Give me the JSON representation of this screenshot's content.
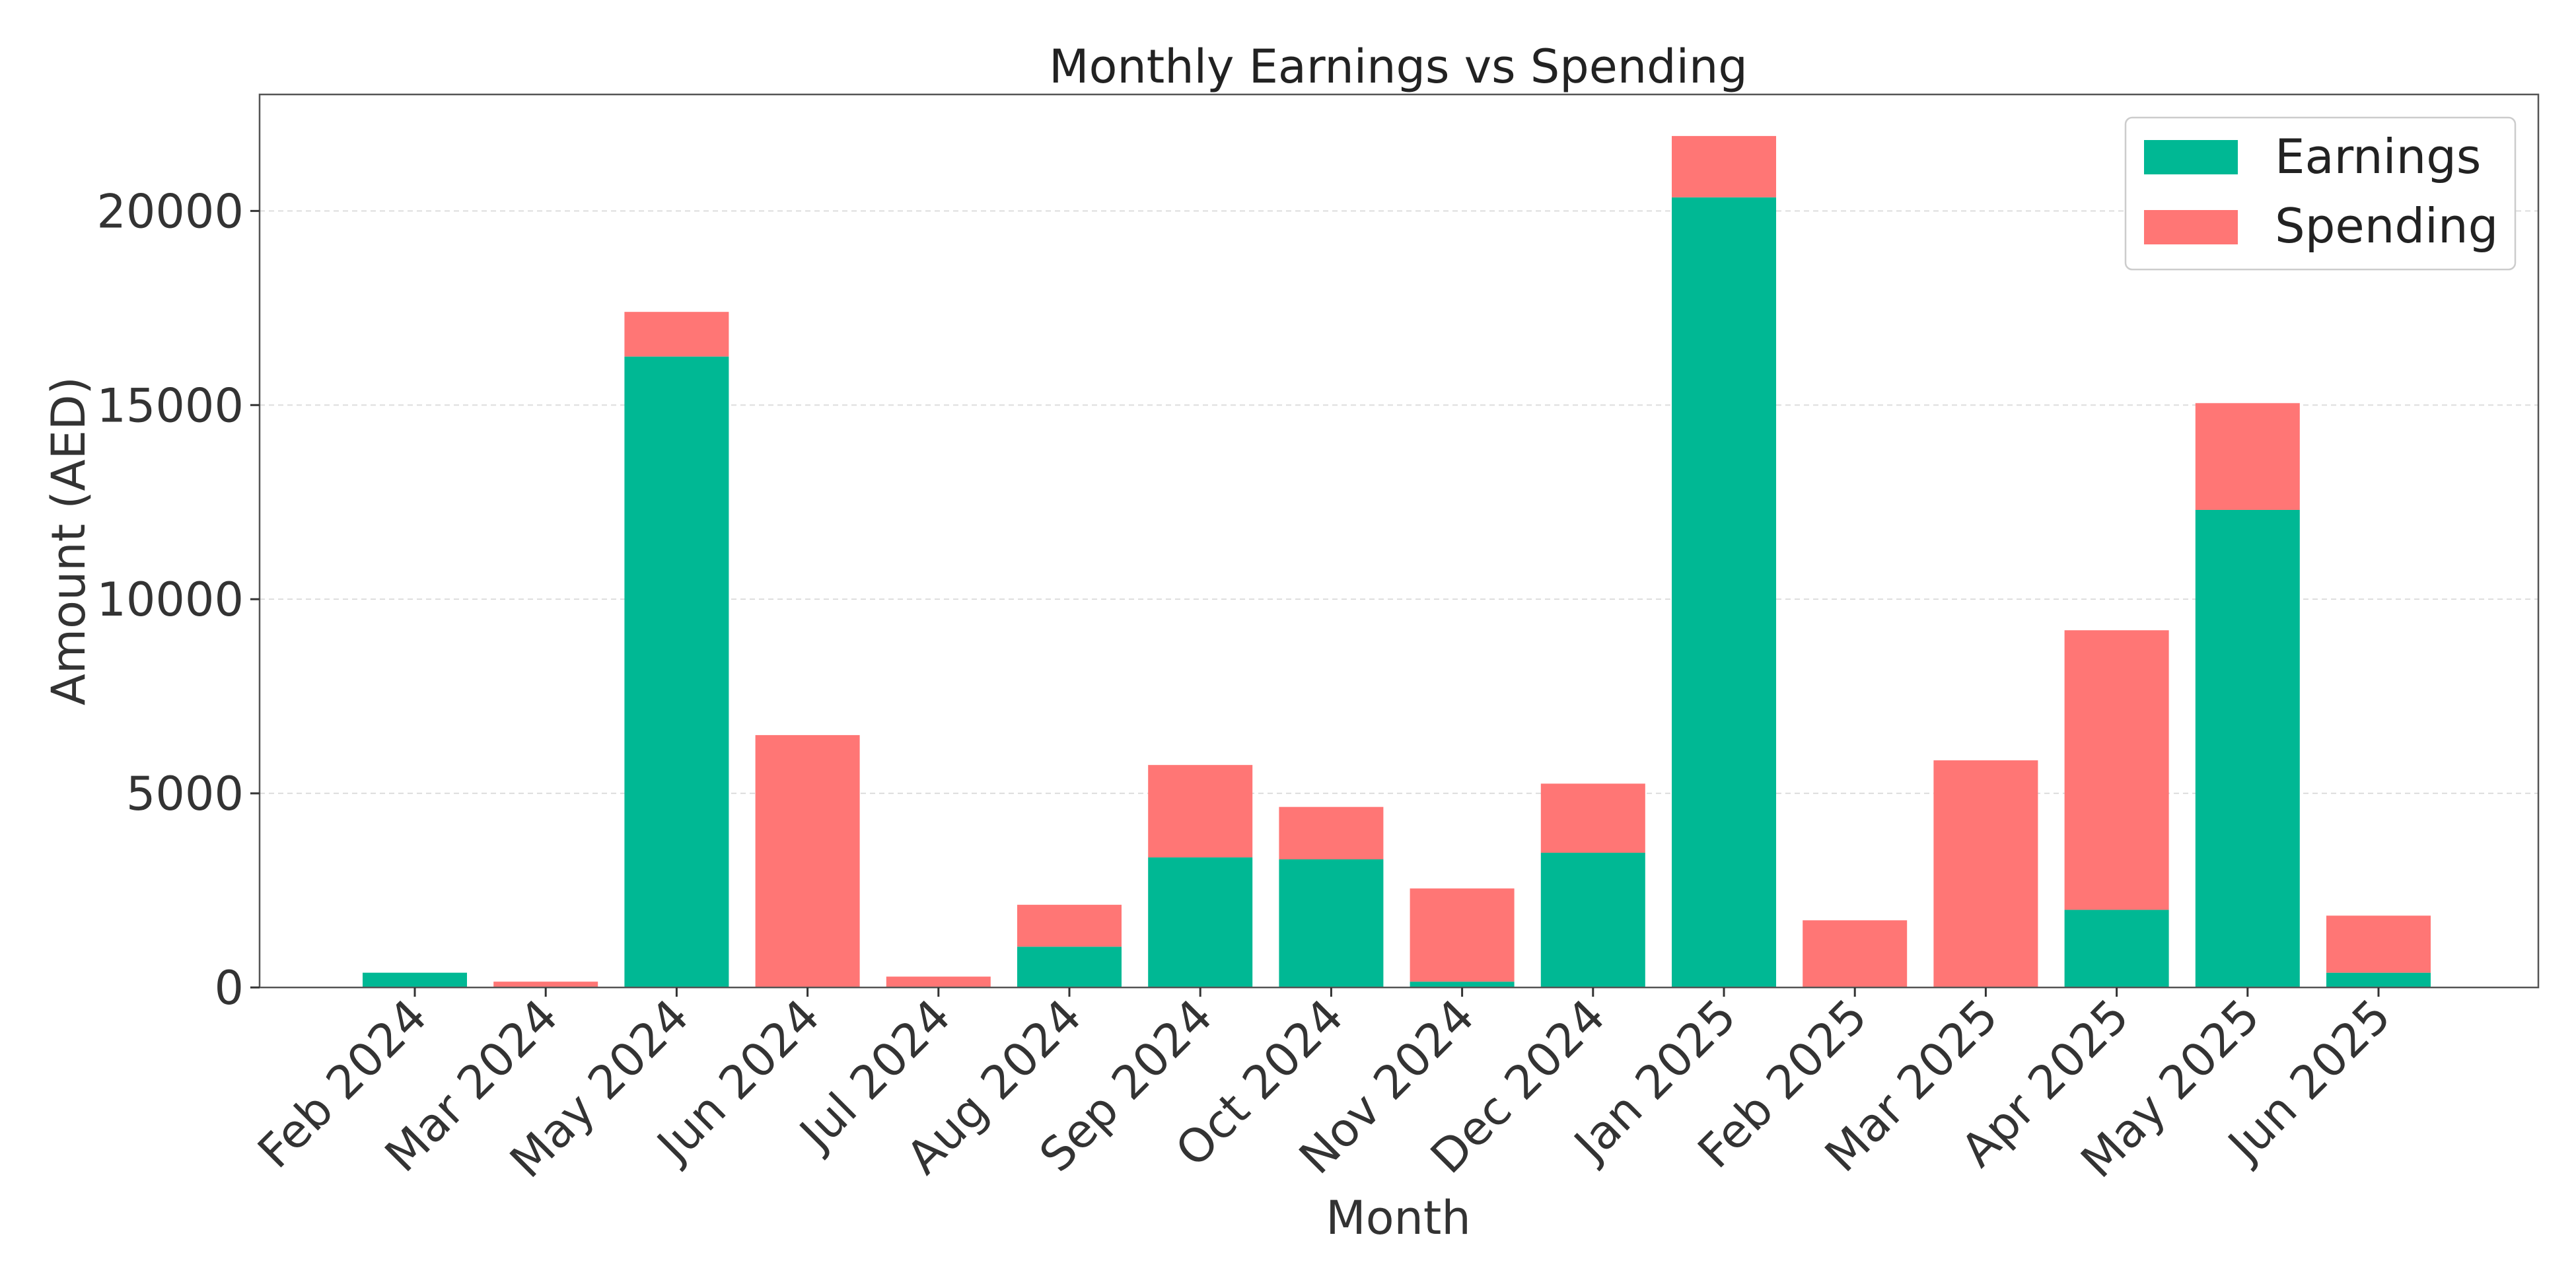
{
  "chart_data": {
    "type": "bar",
    "stacked": true,
    "title": "Monthly Earnings vs Spending",
    "xlabel": "Month",
    "ylabel": "Amount (AED)",
    "ylim": [
      0,
      23000
    ],
    "yticks": [
      0,
      5000,
      10000,
      15000,
      20000
    ],
    "grid": "y",
    "legend_position": "top-right",
    "categories": [
      "Feb 2024",
      "Mar 2024",
      "May 2024",
      "Jun 2024",
      "Jul 2024",
      "Aug 2024",
      "Sep 2024",
      "Oct 2024",
      "Nov 2024",
      "Dec 2024",
      "Jan 2025",
      "Feb 2025",
      "Mar 2025",
      "Apr 2025",
      "May 2025",
      "Jun 2025"
    ],
    "series": [
      {
        "name": "Earnings",
        "color": "#00b894",
        "values": [
          380,
          0,
          16250,
          0,
          0,
          1050,
          3350,
          3300,
          150,
          3470,
          20350,
          0,
          0,
          2000,
          12300,
          380
        ]
      },
      {
        "name": "Spending",
        "color": "#ff7675",
        "values": [
          0,
          150,
          1150,
          6500,
          280,
          1080,
          2380,
          1350,
          2400,
          1780,
          1580,
          1730,
          5850,
          7200,
          2750,
          1470
        ]
      }
    ]
  }
}
